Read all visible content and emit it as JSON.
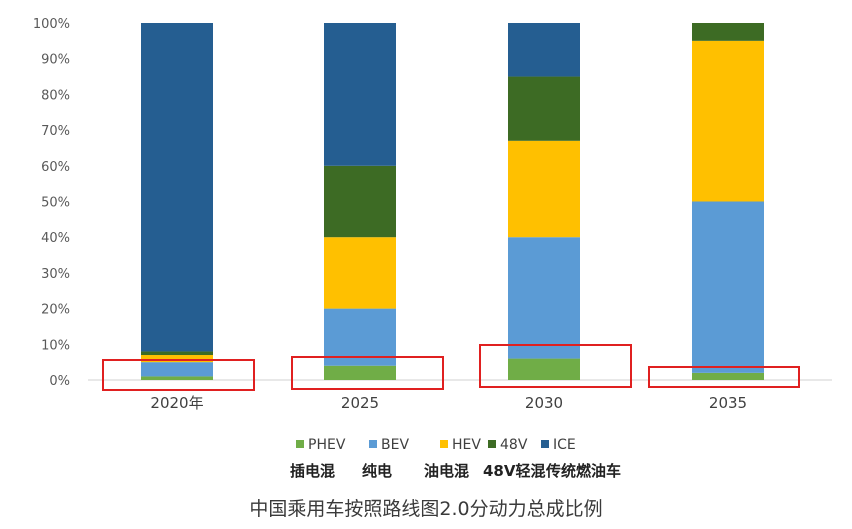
{
  "chart_data": {
    "type": "bar",
    "stacked": true,
    "percent_stacked": true,
    "categories": [
      "2020年",
      "2025",
      "2030",
      "2035"
    ],
    "series": [
      {
        "name": "PHEV",
        "color": "#70ad47",
        "values": [
          1,
          4,
          6,
          2
        ]
      },
      {
        "name": "BEV",
        "color": "#5b9bd5",
        "values": [
          4,
          16,
          34,
          48
        ]
      },
      {
        "name": "HEV",
        "color": "#ffc000",
        "values": [
          2,
          20,
          27,
          45
        ]
      },
      {
        "name": "48V",
        "color": "#3d6b24",
        "values": [
          1,
          20,
          18,
          5
        ]
      },
      {
        "name": "ICE",
        "color": "#255e91",
        "values": [
          92,
          40,
          15,
          0
        ]
      }
    ],
    "y_ticks": [
      "0%",
      "10%",
      "20%",
      "30%",
      "40%",
      "50%",
      "60%",
      "70%",
      "80%",
      "90%",
      "100%"
    ],
    "ylim": [
      0,
      100
    ],
    "legend_position": "bottom",
    "legend_subtitles": [
      "插电混",
      "纯电",
      "油电混",
      "48V轻混",
      "传统燃油车"
    ],
    "grid": false,
    "highlight_color": "#e02020"
  },
  "caption": "中国乘用车按照路线图2.0分动力总成比例"
}
